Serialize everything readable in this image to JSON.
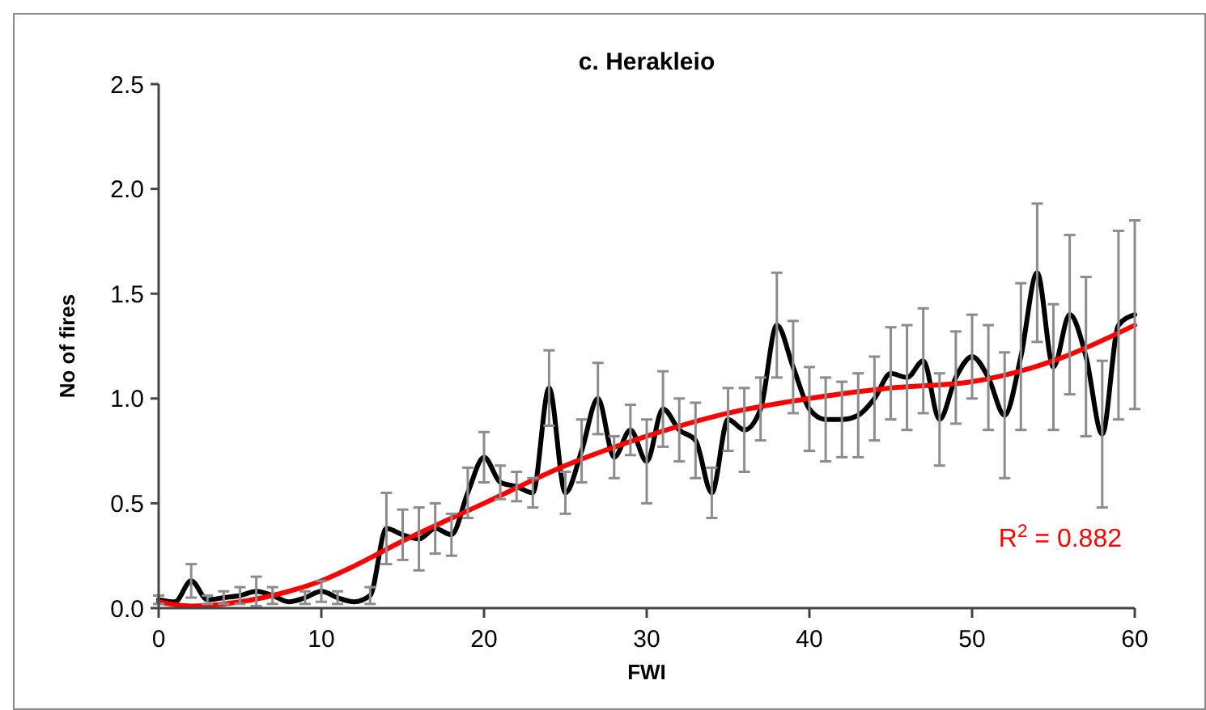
{
  "chart_data": {
    "type": "line",
    "title": "c. Herakleio",
    "xlabel": "FWI",
    "ylabel": "No of fires",
    "xlim": [
      0,
      60
    ],
    "xticks": [
      0,
      10,
      20,
      30,
      40,
      50,
      60
    ],
    "ylim": [
      0,
      2.5
    ],
    "yticks": [
      {
        "value": 0,
        "label": "0.0"
      },
      {
        "value": 0.5,
        "label": "0.5"
      },
      {
        "value": 1,
        "label": "1.0"
      },
      {
        "value": 1.5,
        "label": "1.5"
      },
      {
        "value": 2,
        "label": "2.0"
      },
      {
        "value": 2.5,
        "label": "2.5"
      }
    ],
    "grid": false,
    "marker": "none",
    "line_style": "solid",
    "annotations": [
      "R$^{2}$ = 0.882"
    ],
    "x": [
      0,
      1,
      2,
      3,
      4,
      5,
      6,
      7,
      8,
      9,
      10,
      11,
      12,
      13,
      14,
      15,
      16,
      17,
      18,
      19,
      20,
      21,
      22,
      23,
      24,
      25,
      26,
      27,
      28,
      29,
      30,
      31,
      32,
      33,
      34,
      35,
      36,
      37,
      38,
      39,
      40,
      41,
      42,
      43,
      44,
      45,
      46,
      47,
      48,
      49,
      50,
      51,
      52,
      53,
      54,
      55,
      56,
      57,
      58,
      59,
      60
    ],
    "series": [
      {
        "type": "line",
        "color": "#000000",
        "values": [
          0.04,
          0.03,
          0.13,
          0.04,
          0.05,
          0.06,
          0.08,
          0.06,
          0.03,
          0.05,
          0.08,
          0.05,
          0.03,
          0.06,
          0.38,
          0.35,
          0.33,
          0.38,
          0.35,
          0.55,
          0.72,
          0.6,
          0.58,
          0.55,
          1.05,
          0.55,
          0.75,
          1.0,
          0.72,
          0.85,
          0.7,
          0.95,
          0.85,
          0.8,
          0.55,
          0.9,
          0.85,
          0.95,
          1.35,
          1.15,
          0.95,
          0.9,
          0.9,
          0.92,
          1.0,
          1.12,
          1.1,
          1.18,
          0.9,
          1.1,
          1.2,
          1.1,
          0.92,
          1.2,
          1.6,
          1.15,
          1.4,
          1.2,
          0.83,
          1.35,
          1.4
        ],
        "errors": [
          0.02,
          null,
          0.08,
          0.02,
          0.03,
          0.04,
          0.07,
          0.04,
          null,
          0.03,
          0.05,
          0.03,
          null,
          0.04,
          0.17,
          0.12,
          0.15,
          0.12,
          0.1,
          0.12,
          0.12,
          0.08,
          0.07,
          0.07,
          0.18,
          0.1,
          0.15,
          0.17,
          0.1,
          0.12,
          0.2,
          0.18,
          0.15,
          0.18,
          0.12,
          0.15,
          0.2,
          0.15,
          0.25,
          0.22,
          0.2,
          0.2,
          0.18,
          0.2,
          0.2,
          0.22,
          0.25,
          0.25,
          0.22,
          0.22,
          0.2,
          0.25,
          0.3,
          0.35,
          0.33,
          0.3,
          0.38,
          0.38,
          0.35,
          0.45,
          0.45
        ]
      },
      {
        "type": "line",
        "color": "#ff0000",
        "x": [
          0,
          2,
          5,
          8,
          10,
          12,
          15,
          20,
          25,
          30,
          35,
          40,
          45,
          50,
          55,
          60
        ],
        "values": [
          0.03,
          0.01,
          0.03,
          0.08,
          0.13,
          0.2,
          0.32,
          0.5,
          0.68,
          0.82,
          0.93,
          1.0,
          1.05,
          1.08,
          1.18,
          1.35
        ]
      }
    ]
  }
}
